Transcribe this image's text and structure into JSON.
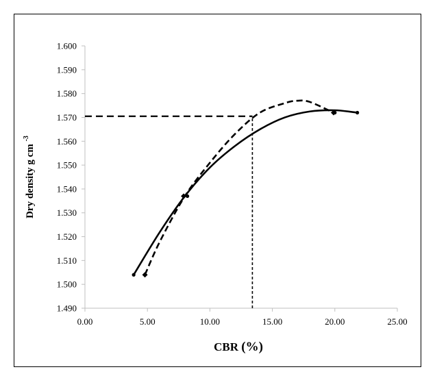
{
  "chart_data": {
    "type": "scatter",
    "title": "",
    "xlabel": "CBR",
    "xlabel_unit": "(%)",
    "ylabel": "Dry density g cm",
    "ylabel_sup": "-3",
    "xlim": [
      0,
      25
    ],
    "ylim": [
      1.49,
      1.6
    ],
    "x_ticks": [
      0,
      5,
      10,
      15,
      20,
      25
    ],
    "x_tick_labels": [
      "0.00",
      "5.00",
      "10.00",
      "15.00",
      "20.00",
      "25.00"
    ],
    "y_ticks": [
      1.49,
      1.5,
      1.51,
      1.52,
      1.53,
      1.54,
      1.55,
      1.56,
      1.57,
      1.58,
      1.59,
      1.6
    ],
    "y_tick_labels": [
      "1.490",
      "1.500",
      "1.510",
      "1.520",
      "1.530",
      "1.540",
      "1.550",
      "1.560",
      "1.570",
      "1.580",
      "1.590",
      "1.600"
    ],
    "grid": false,
    "legend": "none",
    "series": [
      {
        "style": "solid",
        "color": "#000000",
        "marker": "circle",
        "points": [
          {
            "x": 3.9,
            "y": 1.504
          },
          {
            "x": 8.2,
            "y": 1.537
          },
          {
            "x": 20.0,
            "y": 1.572
          },
          {
            "x": 21.8,
            "y": 1.572
          }
        ],
        "trendline": {
          "type": "polynomial",
          "points": [
            {
              "x": 3.9,
              "y": 1.504
            },
            {
              "x": 6.0,
              "y": 1.522
            },
            {
              "x": 8.0,
              "y": 1.537
            },
            {
              "x": 10.0,
              "y": 1.549
            },
            {
              "x": 12.0,
              "y": 1.558
            },
            {
              "x": 14.0,
              "y": 1.565
            },
            {
              "x": 16.0,
              "y": 1.57
            },
            {
              "x": 18.0,
              "y": 1.5725
            },
            {
              "x": 20.0,
              "y": 1.573
            },
            {
              "x": 21.8,
              "y": 1.572
            }
          ]
        }
      },
      {
        "style": "dashed",
        "color": "#000000",
        "marker": "diamond",
        "points": [
          {
            "x": 4.8,
            "y": 1.504
          },
          {
            "x": 7.9,
            "y": 1.537
          },
          {
            "x": 19.9,
            "y": 1.572
          }
        ],
        "trendline": {
          "type": "polynomial",
          "points": [
            {
              "x": 4.8,
              "y": 1.504
            },
            {
              "x": 6.0,
              "y": 1.518
            },
            {
              "x": 8.0,
              "y": 1.537
            },
            {
              "x": 10.0,
              "y": 1.551
            },
            {
              "x": 12.0,
              "y": 1.563
            },
            {
              "x": 14.0,
              "y": 1.572
            },
            {
              "x": 16.0,
              "y": 1.576
            },
            {
              "x": 17.0,
              "y": 1.577
            },
            {
              "x": 18.0,
              "y": 1.5765
            },
            {
              "x": 19.9,
              "y": 1.572
            }
          ]
        }
      }
    ],
    "reference_lines": [
      {
        "style": "dashed",
        "orientation": "horizontal",
        "y": 1.5705,
        "x_from": 0,
        "x_to": 13.4
      },
      {
        "style": "dashed",
        "orientation": "vertical",
        "x": 13.4,
        "y_from": 1.49,
        "y_to": 1.5705
      }
    ]
  }
}
